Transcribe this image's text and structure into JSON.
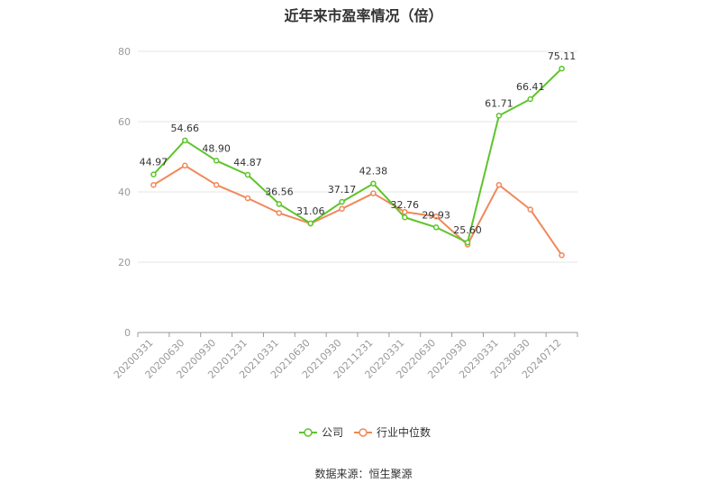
{
  "chart_data": {
    "type": "line",
    "title": "近年来市盈率情况（倍）",
    "categories": [
      "20200331",
      "20200630",
      "20200930",
      "20201231",
      "20210331",
      "20210630",
      "20210930",
      "20211231",
      "20220331",
      "20220630",
      "20220930",
      "20230331",
      "20230630",
      "20240712"
    ],
    "series": [
      {
        "name": "公司",
        "color": "#5ec42b",
        "values": [
          44.97,
          54.66,
          48.9,
          44.87,
          36.56,
          31.06,
          37.17,
          42.38,
          32.76,
          29.93,
          25.6,
          61.71,
          66.41,
          75.11
        ],
        "labels": [
          "44.97",
          "54.66",
          "48.90",
          "44.87",
          "36.56",
          "31.06",
          "37.17",
          "42.38",
          "32.76",
          "29.93",
          "25.60",
          "61.71",
          "66.41",
          "75.11"
        ]
      },
      {
        "name": "行业中位数",
        "color": "#f0885a",
        "values": [
          42,
          47.5,
          42,
          38.2,
          34,
          31,
          35.2,
          39.6,
          34.3,
          33,
          25,
          42,
          35,
          22
        ]
      }
    ],
    "ylim": [
      0,
      80
    ],
    "yticks": [
      0,
      20,
      40,
      60,
      80
    ],
    "grid": true,
    "legend": "bottom-center"
  },
  "source": "数据来源：恒生聚源"
}
